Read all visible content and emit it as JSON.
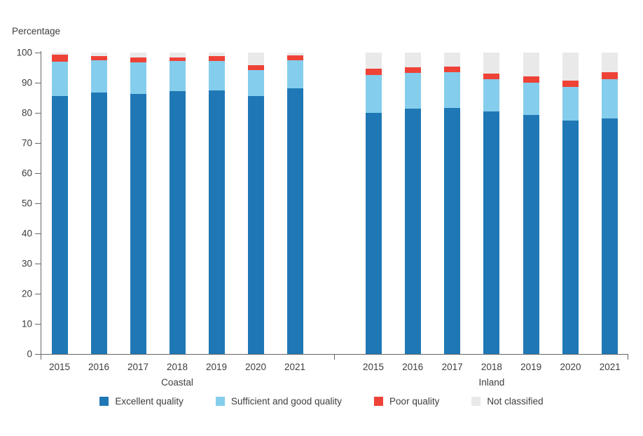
{
  "chart_data": {
    "type": "bar",
    "stacked": true,
    "title": "",
    "ylabel": "Percentage",
    "xlabel": "",
    "ylim": [
      0,
      100
    ],
    "yticks": [
      "0",
      "10",
      "20",
      "30",
      "40",
      "50",
      "60",
      "70",
      "80",
      "90",
      "100"
    ],
    "grid": false,
    "legend_position": "bottom",
    "groups": [
      {
        "label": "Coastal",
        "categories": [
          "2015",
          "2016",
          "2017",
          "2018",
          "2019",
          "2020",
          "2021"
        ],
        "series": [
          {
            "name": "Excellent quality",
            "values": [
              85.6,
              86.8,
              86.2,
              87.1,
              87.4,
              85.5,
              88.2
            ]
          },
          {
            "name": "Sufficient and good quality",
            "values": [
              11.4,
              10.7,
              10.5,
              10.2,
              9.7,
              8.8,
              9.2
            ]
          },
          {
            "name": "Poor quality",
            "values": [
              2.2,
              1.3,
              1.6,
              1.1,
              1.7,
              1.4,
              1.6
            ]
          },
          {
            "name": "Not classified",
            "values": [
              0.8,
              1.2,
              1.7,
              1.6,
              1.2,
              4.3,
              1.0
            ]
          }
        ]
      },
      {
        "label": "Inland",
        "categories": [
          "2015",
          "2016",
          "2017",
          "2018",
          "2019",
          "2020",
          "2021"
        ],
        "series": [
          {
            "name": "Excellent quality",
            "values": [
              80.0,
              81.4,
              81.7,
              80.4,
              79.2,
              77.4,
              78.2
            ]
          },
          {
            "name": "Sufficient and good quality",
            "values": [
              12.5,
              11.8,
              11.7,
              10.8,
              10.9,
              11.1,
              13.0
            ]
          },
          {
            "name": "Poor quality",
            "values": [
              2.1,
              1.9,
              1.9,
              1.8,
              2.1,
              2.2,
              2.3
            ]
          },
          {
            "name": "Not classified",
            "values": [
              5.4,
              4.9,
              4.7,
              7.0,
              7.8,
              9.3,
              6.5
            ]
          }
        ]
      }
    ],
    "legend": [
      {
        "label": "Excellent quality",
        "color": "#1f78b5"
      },
      {
        "label": "Sufficient and good quality",
        "color": "#85cdec"
      },
      {
        "label": "Poor quality",
        "color": "#ee4237"
      },
      {
        "label": "Not classified",
        "color": "#e9e9e9"
      }
    ],
    "colors": {
      "axis": "#666666",
      "text": "#3d3d3d",
      "background": "#ffffff"
    }
  }
}
